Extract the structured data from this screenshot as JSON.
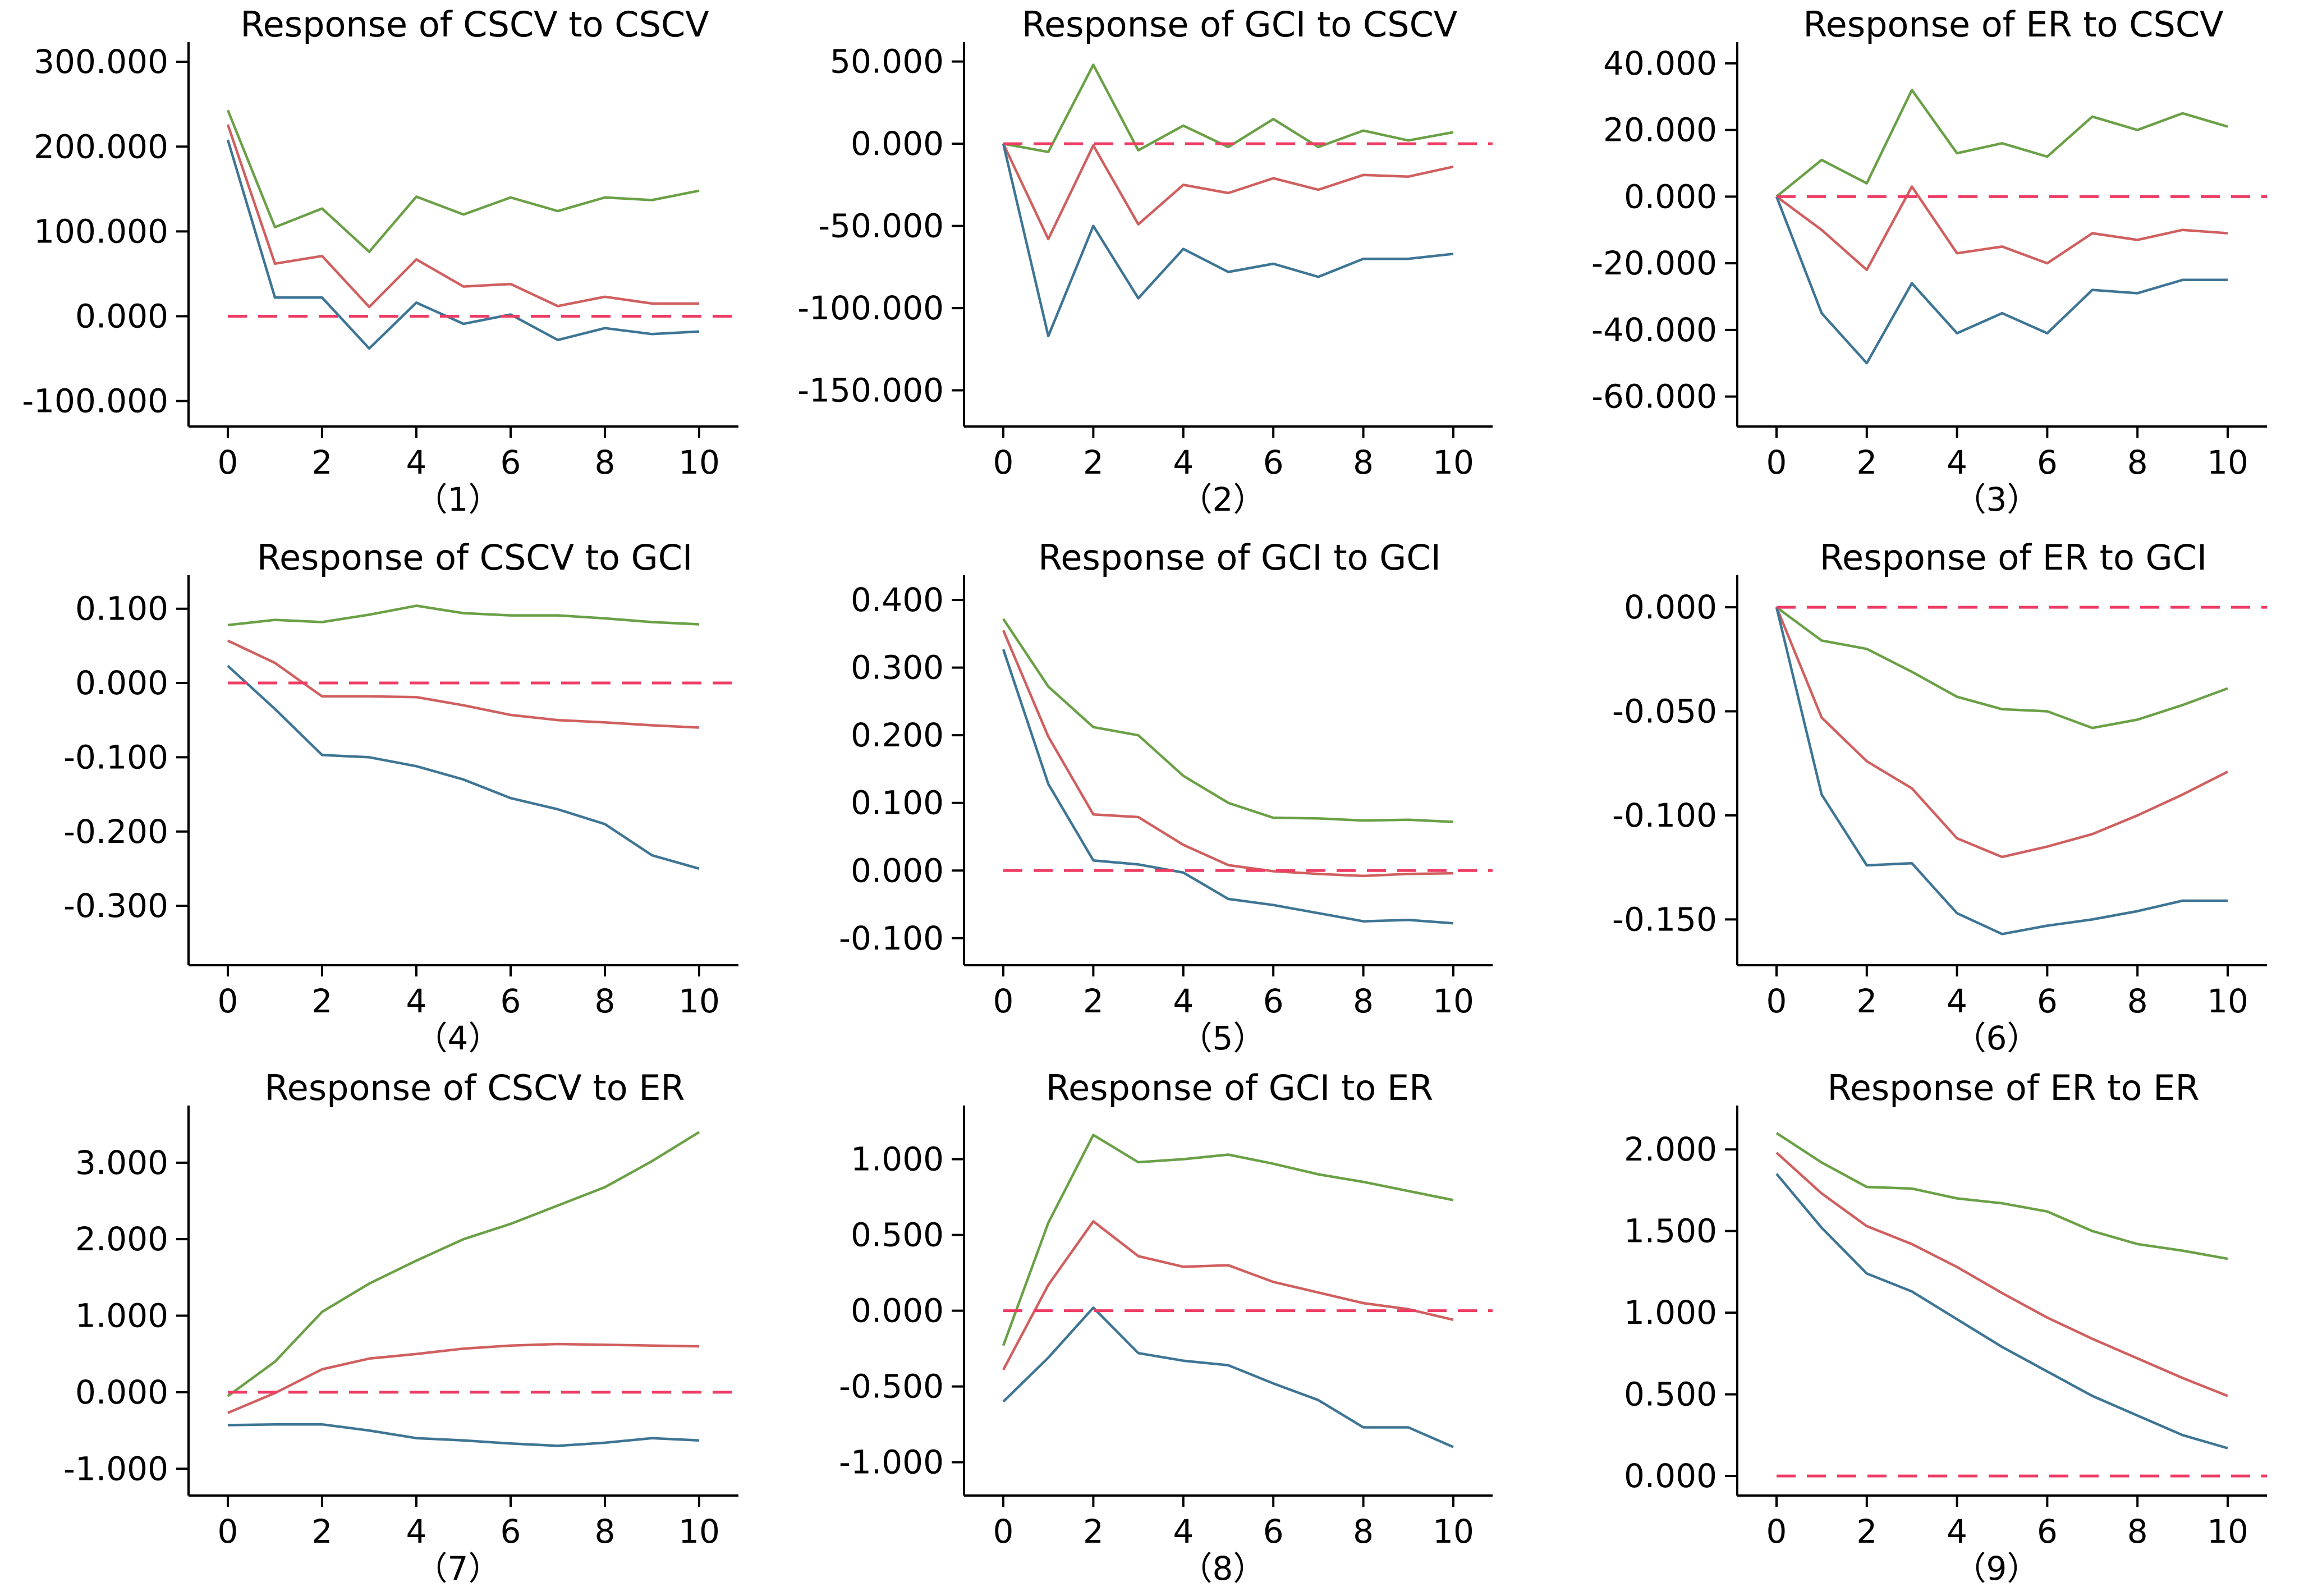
{
  "colors": {
    "upper": "#6aa046",
    "mid": "#d05f5f",
    "lower": "#3e7595",
    "zero": "#ee3c64"
  },
  "chart_data": [
    {
      "type": "line",
      "title": "Response of CSCV to CSCV",
      "caption": "（1）",
      "x": [
        0,
        1,
        2,
        3,
        4,
        5,
        6,
        7,
        8,
        9,
        10
      ],
      "xticks": [
        0,
        2,
        4,
        6,
        8,
        10
      ],
      "ylim": [
        -130,
        310
      ],
      "yticks": [
        -100,
        0,
        100,
        200,
        300
      ],
      "yticklabels": [
        "-100.000",
        "0.000",
        "100.000",
        "200.000",
        "300.000"
      ],
      "series": [
        {
          "name": "upper",
          "values": [
            243,
            105,
            127,
            76,
            141,
            120,
            140,
            124,
            140,
            137,
            148
          ]
        },
        {
          "name": "mid",
          "values": [
            226,
            62,
            71,
            11,
            67,
            35,
            38,
            12,
            23,
            15,
            15
          ]
        },
        {
          "name": "lower",
          "values": [
            208,
            22,
            22,
            -38,
            16,
            -9,
            2,
            -28,
            -14,
            -21,
            -18
          ]
        }
      ]
    },
    {
      "type": "line",
      "title": "Response of GCI to CSCV",
      "caption": "（2）",
      "x": [
        0,
        1,
        2,
        3,
        4,
        5,
        6,
        7,
        8,
        9,
        10
      ],
      "xticks": [
        0,
        2,
        4,
        6,
        8,
        10
      ],
      "ylim": [
        -172,
        55
      ],
      "yticks": [
        -150,
        -100,
        -50,
        0,
        50
      ],
      "yticklabels": [
        "-150.000",
        "-100.000",
        "-50.000",
        "0.000",
        "50.000"
      ],
      "series": [
        {
          "name": "upper",
          "values": [
            0,
            -5,
            48,
            -4,
            11,
            -2,
            15,
            -2,
            8,
            2,
            7
          ]
        },
        {
          "name": "mid",
          "values": [
            0,
            -58,
            -1,
            -49,
            -25,
            -30,
            -21,
            -28,
            -19,
            -20,
            -14
          ]
        },
        {
          "name": "lower",
          "values": [
            0,
            -117,
            -50,
            -94,
            -64,
            -78,
            -73,
            -81,
            -70,
            -70,
            -67
          ]
        }
      ]
    },
    {
      "type": "line",
      "title": "Response of ER to CSCV",
      "caption": "（3）",
      "x": [
        0,
        1,
        2,
        3,
        4,
        5,
        6,
        7,
        8,
        9,
        10
      ],
      "xticks": [
        0,
        2,
        4,
        6,
        8,
        10
      ],
      "ylim": [
        -69,
        43
      ],
      "yticks": [
        -60,
        -40,
        -20,
        0,
        20,
        40
      ],
      "yticklabels": [
        "-60.000",
        "-40.000",
        "-20.000",
        "0.000",
        "20.000",
        "40.000"
      ],
      "series": [
        {
          "name": "upper",
          "values": [
            0,
            11,
            4,
            32,
            13,
            16,
            12,
            24,
            20,
            25,
            21
          ]
        },
        {
          "name": "mid",
          "values": [
            0,
            -10,
            -22,
            3,
            -17,
            -15,
            -20,
            -11,
            -13,
            -10,
            -11
          ]
        },
        {
          "name": "lower",
          "values": [
            0,
            -35,
            -50,
            -26,
            -41,
            -35,
            -41,
            -28,
            -29,
            -25,
            -25
          ]
        }
      ]
    },
    {
      "type": "line",
      "title": "Response of CSCV to GCI",
      "caption": "（4）",
      "x": [
        0,
        1,
        2,
        3,
        4,
        5,
        6,
        7,
        8,
        9,
        10
      ],
      "xticks": [
        0,
        2,
        4,
        6,
        8,
        10
      ],
      "ylim": [
        -0.38,
        0.13
      ],
      "yticks": [
        -0.3,
        -0.2,
        -0.1,
        0,
        0.1
      ],
      "yticklabels": [
        "-0.300",
        "-0.200",
        "-0.100",
        "0.000",
        "0.100"
      ],
      "series": [
        {
          "name": "upper",
          "values": [
            0.078,
            0.085,
            0.082,
            0.092,
            0.104,
            0.094,
            0.091,
            0.091,
            0.087,
            0.082,
            0.079
          ]
        },
        {
          "name": "mid",
          "values": [
            0.057,
            0.027,
            -0.018,
            -0.018,
            -0.019,
            -0.03,
            -0.043,
            -0.05,
            -0.053,
            -0.057,
            -0.06
          ]
        },
        {
          "name": "lower",
          "values": [
            0.023,
            -0.035,
            -0.097,
            -0.1,
            -0.112,
            -0.13,
            -0.155,
            -0.17,
            -0.19,
            -0.232,
            -0.25
          ]
        }
      ]
    },
    {
      "type": "line",
      "title": "Response of GCI to GCI",
      "caption": "（5）",
      "x": [
        0,
        1,
        2,
        3,
        4,
        5,
        6,
        7,
        8,
        9,
        10
      ],
      "xticks": [
        0,
        2,
        4,
        6,
        8,
        10
      ],
      "ylim": [
        -0.14,
        0.42
      ],
      "yticks": [
        -0.1,
        0,
        0.1,
        0.2,
        0.3,
        0.4
      ],
      "yticklabels": [
        "-0.100",
        "0.000",
        "0.100",
        "0.200",
        "0.300",
        "0.400"
      ],
      "series": [
        {
          "name": "upper",
          "values": [
            0.372,
            0.272,
            0.212,
            0.2,
            0.14,
            0.1,
            0.078,
            0.077,
            0.074,
            0.075,
            0.072
          ]
        },
        {
          "name": "mid",
          "values": [
            0.355,
            0.198,
            0.083,
            0.079,
            0.038,
            0.008,
            -0.001,
            -0.005,
            -0.008,
            -0.005,
            -0.004
          ]
        },
        {
          "name": "lower",
          "values": [
            0.327,
            0.128,
            0.015,
            0.009,
            -0.003,
            -0.042,
            -0.051,
            -0.063,
            -0.075,
            -0.073,
            -0.078
          ]
        }
      ]
    },
    {
      "type": "line",
      "title": "Response of ER to GCI",
      "caption": "（6）",
      "x": [
        0,
        1,
        2,
        3,
        4,
        5,
        6,
        7,
        8,
        9,
        10
      ],
      "xticks": [
        0,
        2,
        4,
        6,
        8,
        10
      ],
      "ylim": [
        -0.172,
        0.01
      ],
      "yticks": [
        -0.15,
        -0.1,
        -0.05,
        0
      ],
      "yticklabels": [
        "-0.150",
        "-0.100",
        "-0.050",
        "0.000"
      ],
      "series": [
        {
          "name": "upper",
          "values": [
            0,
            -0.016,
            -0.02,
            -0.031,
            -0.043,
            -0.049,
            -0.05,
            -0.058,
            -0.054,
            -0.047,
            -0.039
          ]
        },
        {
          "name": "mid",
          "values": [
            0,
            -0.053,
            -0.074,
            -0.087,
            -0.111,
            -0.12,
            -0.115,
            -0.109,
            -0.1,
            -0.09,
            -0.079
          ]
        },
        {
          "name": "lower",
          "values": [
            0,
            -0.09,
            -0.124,
            -0.123,
            -0.147,
            -0.157,
            -0.153,
            -0.15,
            -0.146,
            -0.141,
            -0.141
          ]
        }
      ]
    },
    {
      "type": "line",
      "title": "Response of CSCV to ER",
      "caption": "（7）",
      "x": [
        0,
        1,
        2,
        3,
        4,
        5,
        6,
        7,
        8,
        9,
        10
      ],
      "xticks": [
        0,
        2,
        4,
        6,
        8,
        10
      ],
      "ylim": [
        -1.35,
        3.6
      ],
      "yticks": [
        -1,
        0,
        1,
        2,
        3
      ],
      "yticklabels": [
        "-1.000",
        "0.000",
        "1.000",
        "2.000",
        "3.000"
      ],
      "series": [
        {
          "name": "upper",
          "values": [
            -0.05,
            0.4,
            1.05,
            1.42,
            1.72,
            2.0,
            2.2,
            2.44,
            2.68,
            3.02,
            3.4
          ]
        },
        {
          "name": "mid",
          "values": [
            -0.27,
            -0.01,
            0.3,
            0.44,
            0.5,
            0.57,
            0.61,
            0.63,
            0.62,
            0.61,
            0.6
          ]
        },
        {
          "name": "lower",
          "values": [
            -0.43,
            -0.42,
            -0.42,
            -0.5,
            -0.6,
            -0.63,
            -0.67,
            -0.7,
            -0.66,
            -0.6,
            -0.63
          ]
        }
      ]
    },
    {
      "type": "line",
      "title": "Response of GCI to ER",
      "caption": "（8）",
      "x": [
        0,
        1,
        2,
        3,
        4,
        5,
        6,
        7,
        8,
        9,
        10
      ],
      "xticks": [
        0,
        2,
        4,
        6,
        8,
        10
      ],
      "ylim": [
        -1.22,
        1.28
      ],
      "yticks": [
        -1,
        -0.5,
        0,
        0.5,
        1
      ],
      "yticklabels": [
        "-1.000",
        "-0.500",
        "0.000",
        "0.500",
        "1.000"
      ],
      "series": [
        {
          "name": "upper",
          "values": [
            -0.23,
            0.58,
            1.16,
            0.98,
            1.0,
            1.03,
            0.97,
            0.9,
            0.85,
            0.79,
            0.73
          ]
        },
        {
          "name": "mid",
          "values": [
            -0.39,
            0.17,
            0.59,
            0.36,
            0.29,
            0.3,
            0.19,
            0.12,
            0.05,
            0.01,
            -0.06
          ]
        },
        {
          "name": "lower",
          "values": [
            -0.6,
            -0.31,
            0.02,
            -0.28,
            -0.33,
            -0.36,
            -0.48,
            -0.59,
            -0.77,
            -0.77,
            -0.9
          ]
        }
      ]
    },
    {
      "type": "line",
      "title": "Response of ER to ER",
      "caption": "（9）",
      "x": [
        0,
        1,
        2,
        3,
        4,
        5,
        6,
        7,
        8,
        9,
        10
      ],
      "xticks": [
        0,
        2,
        4,
        6,
        8,
        10
      ],
      "ylim": [
        -0.12,
        2.2
      ],
      "yticks": [
        0,
        0.5,
        1,
        1.5,
        2
      ],
      "yticklabels": [
        "0.000",
        "0.500",
        "1.000",
        "1.500",
        "2.000"
      ],
      "series": [
        {
          "name": "upper",
          "values": [
            2.1,
            1.92,
            1.77,
            1.76,
            1.7,
            1.67,
            1.62,
            1.5,
            1.42,
            1.38,
            1.33
          ]
        },
        {
          "name": "mid",
          "values": [
            1.98,
            1.73,
            1.53,
            1.42,
            1.28,
            1.12,
            0.97,
            0.84,
            0.72,
            0.6,
            0.49
          ]
        },
        {
          "name": "lower",
          "values": [
            1.85,
            1.52,
            1.24,
            1.13,
            0.96,
            0.79,
            0.64,
            0.49,
            0.37,
            0.25,
            0.17
          ]
        }
      ]
    }
  ]
}
